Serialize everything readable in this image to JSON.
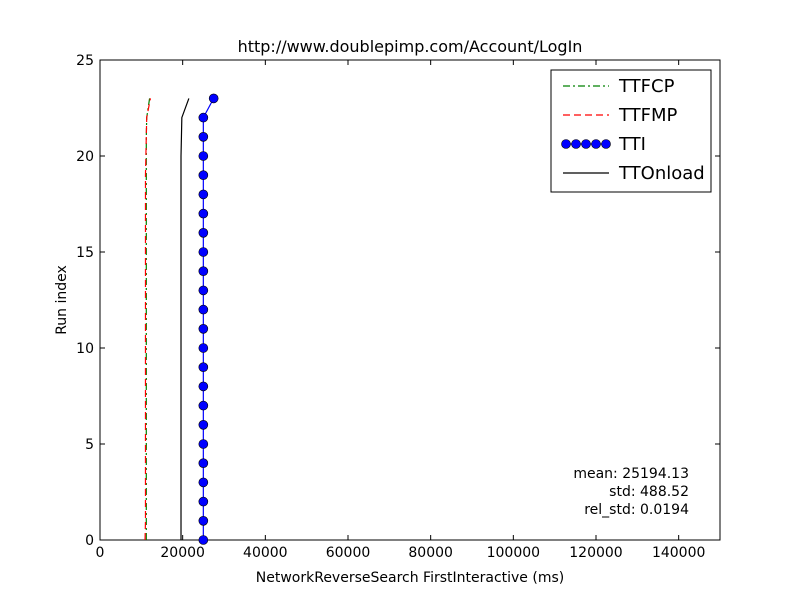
{
  "chart_data": {
    "type": "line",
    "title": "http://www.doublepimp.com/Account/LogIn",
    "xlabel": "NetworkReverseSearch FirstInteractive (ms)",
    "ylabel": "Run index",
    "xlim": [
      0,
      150000
    ],
    "ylim": [
      0,
      25
    ],
    "x_ticks": [
      0,
      20000,
      40000,
      60000,
      80000,
      100000,
      120000,
      140000
    ],
    "x_tick_labels": [
      "0",
      "20000",
      "40000",
      "60000",
      "80000",
      "100000",
      "120000",
      "140000"
    ],
    "y_ticks": [
      0,
      5,
      10,
      15,
      20,
      25
    ],
    "y_tick_labels": [
      "0",
      "5",
      "10",
      "15",
      "20",
      "25"
    ],
    "grid": false,
    "legend_position": "top-right",
    "series": [
      {
        "name": "TTFCP",
        "style": "dashdot",
        "color": "#008000",
        "marker": "none",
        "x": [
          11200,
          11200,
          11200,
          11200,
          11200,
          11200,
          11200,
          11200,
          11200,
          11200,
          11200,
          11200,
          11200,
          11200,
          11200,
          11200,
          11200,
          11200,
          11200,
          11200,
          11200,
          11200,
          11300,
          12000
        ],
        "y": [
          0,
          1,
          2,
          3,
          4,
          5,
          6,
          7,
          8,
          9,
          10,
          11,
          12,
          13,
          14,
          15,
          16,
          17,
          18,
          19,
          20,
          21,
          22,
          23
        ]
      },
      {
        "name": "TTFMP",
        "style": "dashed",
        "color": "#ff0000",
        "marker": "none",
        "x": [
          10900,
          11000,
          11000,
          11000,
          11000,
          11000,
          11000,
          11000,
          11000,
          11000,
          11000,
          11000,
          11000,
          11000,
          11000,
          11000,
          11000,
          11000,
          11000,
          11000,
          11100,
          11200,
          11300,
          12200
        ],
        "y": [
          0,
          1,
          2,
          3,
          4,
          5,
          6,
          7,
          8,
          9,
          10,
          11,
          12,
          13,
          14,
          15,
          16,
          17,
          18,
          19,
          20,
          21,
          22,
          23
        ]
      },
      {
        "name": "TTI",
        "style": "solid",
        "color": "#0000ff",
        "marker": "circle",
        "x": [
          25000,
          25000,
          25000,
          25000,
          25000,
          25000,
          25000,
          25000,
          25000,
          25000,
          25000,
          25000,
          25000,
          25000,
          25000,
          25000,
          25000,
          25000,
          25000,
          25000,
          25000,
          25000,
          25000,
          27500
        ],
        "y": [
          0,
          1,
          2,
          3,
          4,
          5,
          6,
          7,
          8,
          9,
          10,
          11,
          12,
          13,
          14,
          15,
          16,
          17,
          18,
          19,
          20,
          21,
          22,
          23
        ]
      },
      {
        "name": "TTOnload",
        "style": "solid",
        "color": "#000000",
        "marker": "none",
        "x": [
          19600,
          19600,
          19600,
          19600,
          19600,
          19600,
          19600,
          19600,
          19600,
          19600,
          19600,
          19600,
          19600,
          19600,
          19600,
          19600,
          19600,
          19600,
          19600,
          19600,
          19600,
          19700,
          19800,
          21500
        ],
        "y": [
          0,
          1,
          2,
          3,
          4,
          5,
          6,
          7,
          8,
          9,
          10,
          11,
          12,
          13,
          14,
          15,
          16,
          17,
          18,
          19,
          20,
          21,
          22,
          23
        ]
      }
    ],
    "annotations": [
      "mean: 25194.13",
      "std: 488.52",
      "rel_std: 0.0194"
    ]
  }
}
